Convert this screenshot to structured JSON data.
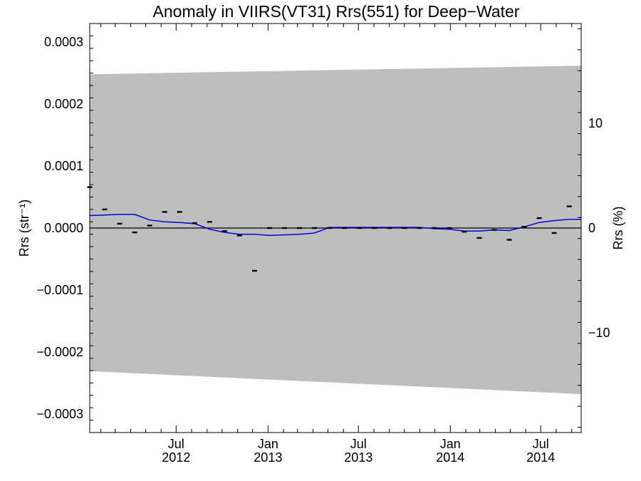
{
  "chart_data": {
    "type": "line",
    "title": "Anomaly in VIIRS(VT31) Rrs(551) for Deep−Water",
    "ylabel_left": "Rrs (str⁻¹)",
    "ylabel_right": "Rrs (%)",
    "xlim": [
      "2012-01-10",
      "2014-09-20"
    ],
    "ylim_left": [
      -0.00033,
      0.00033
    ],
    "ylim_right": [
      -19.5,
      19.5
    ],
    "y_ticks_left": [
      {
        "value": 0.0003,
        "label": "0.0003"
      },
      {
        "value": 0.0002,
        "label": "0.0002"
      },
      {
        "value": 0.0001,
        "label": "0.0001"
      },
      {
        "value": 0.0,
        "label": "0.0000"
      },
      {
        "value": -0.0001,
        "label": "−0.0001"
      },
      {
        "value": -0.0002,
        "label": "−0.0002"
      },
      {
        "value": -0.0003,
        "label": "−0.0003"
      }
    ],
    "y_ticks_right": [
      {
        "value": 10,
        "label": "10"
      },
      {
        "value": 0,
        "label": "0"
      },
      {
        "value": -10,
        "label": "−10"
      }
    ],
    "x_ticks": [
      {
        "date": "2012-07-01",
        "month": "Jul",
        "year": "2012"
      },
      {
        "date": "2013-01-01",
        "month": "Jan",
        "year": "2013"
      },
      {
        "date": "2013-07-01",
        "month": "Jul",
        "year": "2013"
      },
      {
        "date": "2014-01-01",
        "month": "Jan",
        "year": "2014"
      },
      {
        "date": "2014-07-01",
        "month": "Jul",
        "year": "2014"
      }
    ],
    "uncertainty_band": {
      "x": [
        "2012-01-10",
        "2014-09-20"
      ],
      "upper": [
        0.000248,
        0.000262
      ],
      "lower": [
        -0.000231,
        -0.000268
      ],
      "color": "#bebebe"
    },
    "series": [
      {
        "style": "markers",
        "color": "#000000",
        "points": [
          {
            "x": "2012-01-10",
            "y": 6.6e-05
          },
          {
            "x": "2012-02-09",
            "y": 3e-05
          },
          {
            "x": "2012-03-10",
            "y": 7e-06
          },
          {
            "x": "2012-04-09",
            "y": -7e-06
          },
          {
            "x": "2012-05-09",
            "y": 4e-06
          },
          {
            "x": "2012-06-08",
            "y": 2.6e-05
          },
          {
            "x": "2012-07-08",
            "y": 2.6e-05
          },
          {
            "x": "2012-08-07",
            "y": 8e-06
          },
          {
            "x": "2012-09-06",
            "y": 1e-05
          },
          {
            "x": "2012-10-06",
            "y": -5e-06
          },
          {
            "x": "2012-11-05",
            "y": -1.2e-05
          },
          {
            "x": "2012-12-05",
            "y": -6.9e-05
          },
          {
            "x": "2013-01-04",
            "y": 0.0
          },
          {
            "x": "2013-02-03",
            "y": 0.0
          },
          {
            "x": "2013-03-05",
            "y": 0.0
          },
          {
            "x": "2013-04-04",
            "y": 0.0
          },
          {
            "x": "2013-05-04",
            "y": 0.0
          },
          {
            "x": "2013-06-03",
            "y": 0.0
          },
          {
            "x": "2013-07-03",
            "y": 0.0
          },
          {
            "x": "2013-08-02",
            "y": 0.0
          },
          {
            "x": "2013-09-01",
            "y": 0.0
          },
          {
            "x": "2013-10-01",
            "y": 0.0
          },
          {
            "x": "2013-10-31",
            "y": 0.0
          },
          {
            "x": "2013-11-30",
            "y": 0.0
          },
          {
            "x": "2013-12-30",
            "y": 0.0
          },
          {
            "x": "2014-01-29",
            "y": -6e-06
          },
          {
            "x": "2014-02-28",
            "y": -1.6e-05
          },
          {
            "x": "2014-03-30",
            "y": -3e-06
          },
          {
            "x": "2014-04-29",
            "y": -1.9e-05
          },
          {
            "x": "2014-05-29",
            "y": 2e-06
          },
          {
            "x": "2014-06-28",
            "y": 1.6e-05
          },
          {
            "x": "2014-07-28",
            "y": -8e-06
          },
          {
            "x": "2014-08-27",
            "y": 3.5e-05
          }
        ]
      },
      {
        "style": "line",
        "color": "#0000e0",
        "points": [
          {
            "x": "2012-01-10",
            "y": 2e-05
          },
          {
            "x": "2012-02-09",
            "y": 2.1e-05
          },
          {
            "x": "2012-03-10",
            "y": 2.2e-05
          },
          {
            "x": "2012-04-09",
            "y": 2.2e-05
          },
          {
            "x": "2012-05-09",
            "y": 1.3e-05
          },
          {
            "x": "2012-06-08",
            "y": 1e-05
          },
          {
            "x": "2012-07-08",
            "y": 9e-06
          },
          {
            "x": "2012-08-07",
            "y": 7e-06
          },
          {
            "x": "2012-09-06",
            "y": -2e-06
          },
          {
            "x": "2012-10-06",
            "y": -7e-06
          },
          {
            "x": "2012-11-05",
            "y": -1e-05
          },
          {
            "x": "2012-12-05",
            "y": -1e-05
          },
          {
            "x": "2013-01-04",
            "y": -1.2e-05
          },
          {
            "x": "2013-02-03",
            "y": -1.1e-05
          },
          {
            "x": "2013-03-05",
            "y": -1e-05
          },
          {
            "x": "2013-04-04",
            "y": -8e-06
          },
          {
            "x": "2013-05-04",
            "y": 1e-06
          },
          {
            "x": "2013-06-03",
            "y": 1e-06
          },
          {
            "x": "2013-07-03",
            "y": 1e-06
          },
          {
            "x": "2013-08-02",
            "y": 1e-06
          },
          {
            "x": "2013-09-01",
            "y": 1e-06
          },
          {
            "x": "2013-10-01",
            "y": 1e-06
          },
          {
            "x": "2013-10-31",
            "y": 1e-06
          },
          {
            "x": "2013-11-30",
            "y": -1e-06
          },
          {
            "x": "2013-12-30",
            "y": -2e-06
          },
          {
            "x": "2014-01-29",
            "y": -5e-06
          },
          {
            "x": "2014-02-28",
            "y": -5e-06
          },
          {
            "x": "2014-03-30",
            "y": -3e-06
          },
          {
            "x": "2014-04-29",
            "y": -4e-06
          },
          {
            "x": "2014-05-29",
            "y": 2e-06
          },
          {
            "x": "2014-06-28",
            "y": 9e-06
          },
          {
            "x": "2014-07-28",
            "y": 1.2e-05
          },
          {
            "x": "2014-08-27",
            "y": 1.4e-05
          },
          {
            "x": "2014-09-20",
            "y": 1.4e-05
          }
        ]
      }
    ],
    "zero_line": true
  }
}
